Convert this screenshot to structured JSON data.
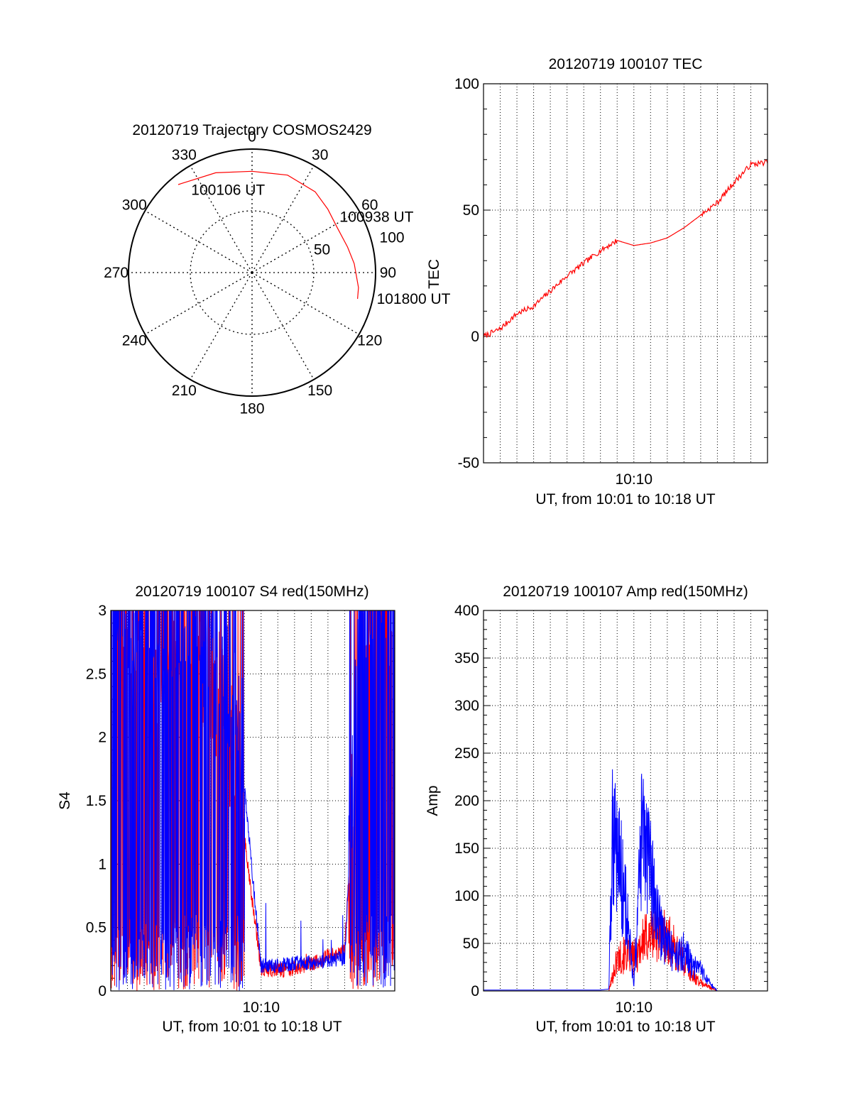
{
  "chart_data": [
    {
      "type": "polar",
      "title": "20120719 Trajectory COSMOS2429",
      "azimuth_ticks": [
        "0",
        "30",
        "60",
        "90",
        "120",
        "150",
        "180",
        "210",
        "240",
        "270",
        "300",
        "330"
      ],
      "azimuth_tick_values": [
        0,
        30,
        60,
        90,
        120,
        150,
        180,
        210,
        240,
        270,
        300,
        330
      ],
      "radial_ticks": [
        "50",
        "100"
      ],
      "radial_tick_values": [
        50,
        100
      ],
      "radial_range": [
        0,
        100
      ],
      "grid": true,
      "series": [
        {
          "color": "#ff0000",
          "points": [
            {
              "az": 320,
              "r": 93
            },
            {
              "az": 340,
              "r": 86
            },
            {
              "az": 0,
              "r": 82
            },
            {
              "az": 20,
              "r": 84
            },
            {
              "az": 38,
              "r": 83
            },
            {
              "az": 50,
              "r": 80
            },
            {
              "az": 62,
              "r": 78
            },
            {
              "az": 75,
              "r": 80
            },
            {
              "az": 85,
              "r": 83
            },
            {
              "az": 98,
              "r": 87
            },
            {
              "az": 104,
              "r": 88
            }
          ]
        }
      ],
      "annotations": [
        {
          "text": "100106 UT",
          "az": 322,
          "r": 80
        },
        {
          "text": "100938 UT",
          "az": 60,
          "r": 82
        },
        {
          "text": "101800 UT",
          "az": 104,
          "r": 104
        }
      ]
    },
    {
      "type": "line",
      "title": "20120719 100107 TEC",
      "xlabel": "UT, from 10:01 to 10:18 UT",
      "ylabel": "TEC",
      "x_tick_labels": [
        "10:10"
      ],
      "x_tick_values": [
        "10:10"
      ],
      "xlim": [
        "10:01",
        "10:18"
      ],
      "ylim": [
        -50,
        100
      ],
      "y_ticks": [
        -50,
        0,
        50,
        100
      ],
      "grid": true,
      "series": [
        {
          "color": "#ff0000",
          "x": [
            "10:01",
            "10:02",
            "10:03",
            "10:04",
            "10:05",
            "10:06",
            "10:07",
            "10:08",
            "10:09",
            "10:10",
            "10:11",
            "10:12",
            "10:13",
            "10:14",
            "10:15",
            "10:16",
            "10:17",
            "10:18"
          ],
          "y": [
            0,
            3,
            9,
            12,
            18,
            24,
            29,
            34,
            38,
            36,
            37,
            39,
            43,
            48,
            53,
            61,
            68,
            69
          ]
        }
      ]
    },
    {
      "type": "line",
      "title": "20120719 100107 S4 red(150MHz)",
      "xlabel": "UT, from 10:01 to 10:18 UT",
      "ylabel": "S4",
      "x_tick_labels": [
        "10:10"
      ],
      "x_tick_values": [
        "10:10"
      ],
      "xlim": [
        "10:01",
        "10:18"
      ],
      "ylim": [
        0,
        3
      ],
      "y_ticks": [
        "0",
        "0.5",
        "1",
        "1.5",
        "2",
        "2.5",
        "3"
      ],
      "y_tick_values": [
        0,
        0.5,
        1,
        1.5,
        2,
        2.5,
        3
      ],
      "grid": true,
      "series": [
        {
          "color": "#ff0000",
          "x": [
            "10:01",
            "10:02",
            "10:03",
            "10:04",
            "10:05",
            "10:06",
            "10:07",
            "10:08",
            "10:09",
            "10:10",
            "10:11",
            "10:12",
            "10:13",
            "10:14",
            "10:15",
            "10:16",
            "10:17",
            "10:18"
          ],
          "y": [
            2.9,
            2.7,
            2.6,
            2.4,
            2.6,
            2.5,
            2.3,
            1.8,
            1.2,
            0.17,
            0.16,
            0.18,
            0.21,
            0.27,
            0.33,
            2.6,
            2.8,
            2.7
          ]
        },
        {
          "color": "#0000ff",
          "x": [
            "10:01",
            "10:02",
            "10:03",
            "10:04",
            "10:05",
            "10:06",
            "10:07",
            "10:08",
            "10:09",
            "10:10",
            "10:11",
            "10:12",
            "10:13",
            "10:14",
            "10:15",
            "10:16",
            "10:17",
            "10:18"
          ],
          "y": [
            3.0,
            2.8,
            2.7,
            2.6,
            2.8,
            2.7,
            2.5,
            2.1,
            1.6,
            0.2,
            0.2,
            0.22,
            0.22,
            0.24,
            0.26,
            2.8,
            3.0,
            2.9
          ]
        }
      ]
    },
    {
      "type": "line",
      "title": "20120719 100107 Amp red(150MHz)",
      "xlabel": "UT, from 10:01 to 10:18 UT",
      "ylabel": "Amp",
      "x_tick_labels": [
        "10:10"
      ],
      "x_tick_values": [
        "10:10"
      ],
      "xlim": [
        "10:01",
        "10:18"
      ],
      "ylim": [
        0,
        400
      ],
      "y_ticks": [
        0,
        50,
        100,
        150,
        200,
        250,
        300,
        350,
        400
      ],
      "grid": true,
      "series": [
        {
          "color": "#ff0000",
          "x": [
            "10:01",
            "10:05",
            "10:08",
            "10:08:30",
            "10:09",
            "10:09:30",
            "10:10",
            "10:10:30",
            "10:11",
            "10:11:30",
            "10:12",
            "10:12:30",
            "10:13",
            "10:13:30",
            "10:14",
            "10:14:30",
            "10:15",
            "10:18"
          ],
          "y": [
            0,
            0,
            0,
            0,
            40,
            45,
            40,
            60,
            70,
            75,
            65,
            50,
            35,
            20,
            10,
            5,
            0,
            0
          ]
        },
        {
          "color": "#0000ff",
          "x": [
            "10:01",
            "10:05",
            "10:08",
            "10:08:30",
            "10:08:45",
            "10:09",
            "10:09:30",
            "10:10",
            "10:10:30",
            "10:11",
            "10:11:30",
            "10:12",
            "10:12:30",
            "10:13",
            "10:13:30",
            "10:14",
            "10:14:30",
            "10:15",
            "10:18"
          ],
          "y": [
            1,
            1,
            1,
            2,
            210,
            180,
            110,
            5,
            200,
            140,
            80,
            60,
            40,
            50,
            30,
            25,
            10,
            0,
            0
          ]
        }
      ]
    }
  ]
}
